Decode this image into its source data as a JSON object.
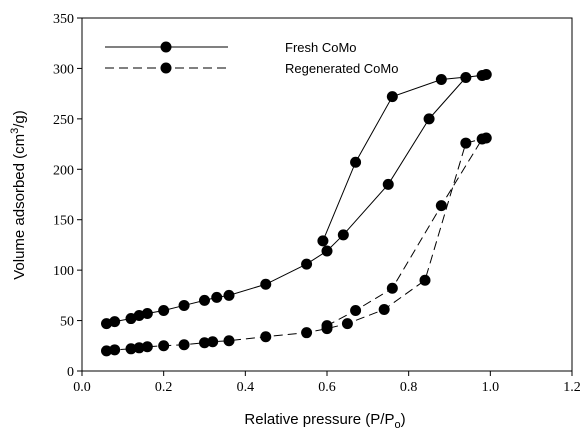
{
  "chart_data": {
    "type": "scatter",
    "xlabel": {
      "text": "Relative pressure (P/P",
      "sub": "o",
      "tail": ")"
    },
    "ylabel": {
      "text": "Volume adsorbed (cm",
      "sup": "3",
      "tail": "/g)"
    },
    "xlim": [
      0,
      1.2
    ],
    "xticks": [
      {
        "value": 0,
        "label": "0.0"
      },
      0.2,
      0.4,
      0.6,
      0.8,
      {
        "value": 1,
        "label": "1.0"
      },
      1.2
    ],
    "ylim": [
      0,
      350
    ],
    "yticks": [
      0,
      50,
      100,
      150,
      200,
      250,
      300,
      350
    ],
    "legend": "upper left",
    "series": [
      {
        "name": "Fresh CoMo",
        "color": "#000000",
        "dashed": false,
        "x": [
          0.06,
          0.08,
          0.12,
          0.14,
          0.16,
          0.2,
          0.25,
          0.3,
          0.33,
          0.36,
          0.45,
          0.55,
          0.6,
          0.64,
          0.75,
          0.85,
          0.94,
          0.99,
          0.98,
          0.88,
          0.76,
          0.67,
          0.59
        ],
        "values": [
          47,
          49,
          52,
          55,
          57,
          60,
          65,
          70,
          73,
          75,
          86,
          106,
          119,
          135,
          185,
          250,
          291,
          294,
          293,
          289,
          272,
          207,
          129
        ]
      },
      {
        "name": "Regenerated CoMo",
        "color": "#000000",
        "dashed": true,
        "x": [
          0.06,
          0.08,
          0.12,
          0.14,
          0.16,
          0.2,
          0.25,
          0.3,
          0.32,
          0.36,
          0.45,
          0.55,
          0.6,
          0.65,
          0.74,
          0.84,
          0.94,
          0.99,
          0.98,
          0.88,
          0.76,
          0.67,
          0.6
        ],
        "values": [
          20,
          21,
          22,
          23,
          24,
          25,
          26,
          28,
          29,
          30,
          34,
          38,
          42,
          47,
          61,
          90,
          226,
          231,
          230,
          164,
          82,
          60,
          45
        ]
      }
    ]
  }
}
